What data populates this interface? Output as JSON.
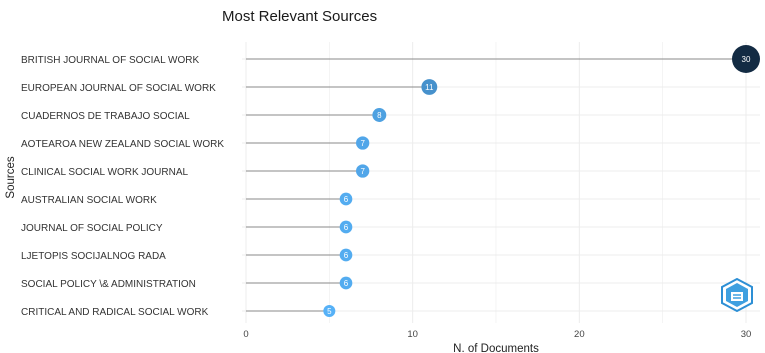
{
  "chart_data": {
    "type": "lollipop",
    "title": "Most Relevant Sources",
    "xlabel": "N. of Documents",
    "ylabel": "Sources",
    "xlim": [
      0,
      30
    ],
    "xticks": [
      0,
      10,
      20,
      30
    ],
    "grid": true,
    "categories": [
      "BRITISH JOURNAL OF SOCIAL WORK",
      "EUROPEAN JOURNAL OF SOCIAL WORK",
      "CUADERNOS DE TRABAJO SOCIAL",
      "AOTEAROA NEW ZEALAND SOCIAL WORK",
      "CLINICAL SOCIAL WORK JOURNAL",
      "AUSTRALIAN SOCIAL WORK",
      "JOURNAL OF SOCIAL POLICY",
      "LJETOPIS SOCIJALNOG RADA",
      "SOCIAL POLICY \\& ADMINISTRATION",
      "CRITICAL AND RADICAL SOCIAL WORK"
    ],
    "values": [
      30,
      11,
      8,
      7,
      7,
      6,
      6,
      6,
      6,
      5
    ],
    "colors": {
      "low": "#56B1F7",
      "high": "#132B43",
      "stem": "#8a8a8a",
      "grid": "#ececec"
    }
  },
  "logo": {
    "icon": "bibliometrix-hexagon-logo"
  }
}
